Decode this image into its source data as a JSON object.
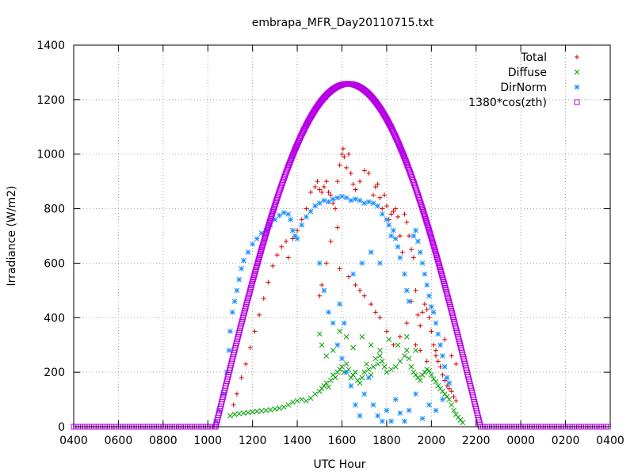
{
  "chart_data": {
    "type": "scatter",
    "title": "embrapa_MFR_Day20110715.txt",
    "xlabel": "UTC Hour",
    "ylabel": "Irradiance (W/m2)",
    "xlim": [
      4,
      28
    ],
    "ylim": [
      0,
      1400
    ],
    "x_ticks": [
      {
        "value": 4,
        "label": "0400"
      },
      {
        "value": 6,
        "label": "0600"
      },
      {
        "value": 8,
        "label": "0800"
      },
      {
        "value": 10,
        "label": "1000"
      },
      {
        "value": 12,
        "label": "1200"
      },
      {
        "value": 14,
        "label": "1400"
      },
      {
        "value": 16,
        "label": "1600"
      },
      {
        "value": 18,
        "label": "1800"
      },
      {
        "value": 20,
        "label": "2000"
      },
      {
        "value": 22,
        "label": "2200"
      },
      {
        "value": 24,
        "label": "0000"
      },
      {
        "value": 26,
        "label": "0200"
      },
      {
        "value": 28,
        "label": "0400"
      }
    ],
    "y_ticks": [
      0,
      200,
      400,
      600,
      800,
      1000,
      1200,
      1400
    ],
    "grid": true,
    "legend_position": "top-right",
    "series": [
      {
        "name": "Total",
        "marker": "plus",
        "color": "#d40000",
        "points": [
          [
            11.15,
            80
          ],
          [
            11.3,
            120
          ],
          [
            11.5,
            180
          ],
          [
            11.7,
            230
          ],
          [
            11.9,
            290
          ],
          [
            12.1,
            350
          ],
          [
            12.3,
            410
          ],
          [
            12.5,
            470
          ],
          [
            12.7,
            530
          ],
          [
            12.9,
            590
          ],
          [
            13.1,
            630
          ],
          [
            13.3,
            660
          ],
          [
            13.5,
            680
          ],
          [
            13.6,
            620
          ],
          [
            13.8,
            690
          ],
          [
            14.0,
            720
          ],
          [
            14.2,
            760
          ],
          [
            14.4,
            800
          ],
          [
            14.6,
            860
          ],
          [
            14.8,
            880
          ],
          [
            14.9,
            900
          ],
          [
            15.0,
            870
          ],
          [
            15.1,
            860
          ],
          [
            15.2,
            880
          ],
          [
            15.3,
            900
          ],
          [
            15.4,
            860
          ],
          [
            15.5,
            850
          ],
          [
            15.6,
            820
          ],
          [
            15.7,
            800
          ],
          [
            15.8,
            900
          ],
          [
            15.9,
            960
          ],
          [
            16.0,
            1000
          ],
          [
            16.05,
            1020
          ],
          [
            16.1,
            990
          ],
          [
            16.2,
            950
          ],
          [
            16.3,
            1000
          ],
          [
            16.4,
            930
          ],
          [
            16.5,
            890
          ],
          [
            16.6,
            870
          ],
          [
            16.8,
            900
          ],
          [
            17.0,
            940
          ],
          [
            17.2,
            930
          ],
          [
            17.4,
            850
          ],
          [
            17.5,
            880
          ],
          [
            17.6,
            890
          ],
          [
            17.7,
            840
          ],
          [
            17.8,
            800
          ],
          [
            17.9,
            850
          ],
          [
            18.0,
            810
          ],
          [
            18.1,
            760
          ],
          [
            18.2,
            780
          ],
          [
            18.3,
            790
          ],
          [
            18.4,
            800
          ],
          [
            18.5,
            770
          ],
          [
            18.6,
            700
          ],
          [
            18.7,
            640
          ],
          [
            18.8,
            780
          ],
          [
            18.9,
            750
          ],
          [
            19.0,
            700
          ],
          [
            19.1,
            650
          ],
          [
            19.2,
            620
          ],
          [
            19.3,
            500
          ],
          [
            19.4,
            410
          ],
          [
            19.5,
            370
          ],
          [
            19.6,
            420
          ],
          [
            19.7,
            450
          ],
          [
            19.8,
            430
          ],
          [
            19.9,
            400
          ],
          [
            20.0,
            350
          ],
          [
            20.1,
            300
          ],
          [
            20.2,
            260
          ],
          [
            20.3,
            240
          ],
          [
            20.4,
            220
          ],
          [
            20.5,
            190
          ],
          [
            20.6,
            170
          ],
          [
            20.7,
            150
          ],
          [
            20.8,
            140
          ],
          [
            20.9,
            130
          ],
          [
            21.0,
            110
          ],
          [
            21.1,
            95
          ],
          [
            15.0,
            480
          ],
          [
            15.1,
            520
          ],
          [
            15.3,
            600
          ],
          [
            15.5,
            680
          ],
          [
            15.8,
            730
          ],
          [
            15.9,
            580
          ],
          [
            16.3,
            550
          ],
          [
            16.6,
            520
          ],
          [
            16.8,
            500
          ],
          [
            17.0,
            480
          ],
          [
            17.3,
            450
          ],
          [
            17.5,
            420
          ],
          [
            17.7,
            400
          ],
          [
            18.0,
            350
          ],
          [
            18.3,
            300
          ],
          [
            18.6,
            330
          ],
          [
            18.9,
            380
          ],
          [
            19.1,
            460
          ],
          [
            19.3,
            300
          ],
          [
            19.5,
            280
          ],
          [
            19.8,
            240
          ],
          [
            20.2,
            280
          ],
          [
            20.6,
            320
          ],
          [
            20.9,
            260
          ],
          [
            21.1,
            230
          ]
        ]
      },
      {
        "name": "Diffuse",
        "marker": "cross",
        "color": "#00a000",
        "points": [
          [
            11.0,
            40
          ],
          [
            11.2,
            45
          ],
          [
            11.4,
            48
          ],
          [
            11.6,
            50
          ],
          [
            11.8,
            52
          ],
          [
            12.0,
            54
          ],
          [
            12.2,
            56
          ],
          [
            12.4,
            58
          ],
          [
            12.6,
            60
          ],
          [
            12.8,
            62
          ],
          [
            13.0,
            65
          ],
          [
            13.2,
            68
          ],
          [
            13.4,
            72
          ],
          [
            13.6,
            80
          ],
          [
            13.8,
            90
          ],
          [
            14.0,
            95
          ],
          [
            14.2,
            100
          ],
          [
            14.4,
            95
          ],
          [
            14.6,
            105
          ],
          [
            14.8,
            120
          ],
          [
            15.0,
            130
          ],
          [
            15.1,
            140
          ],
          [
            15.2,
            150
          ],
          [
            15.3,
            160
          ],
          [
            15.4,
            145
          ],
          [
            15.5,
            170
          ],
          [
            15.6,
            190
          ],
          [
            15.7,
            180
          ],
          [
            15.8,
            200
          ],
          [
            15.9,
            210
          ],
          [
            16.0,
            220
          ],
          [
            16.1,
            200
          ],
          [
            16.2,
            230
          ],
          [
            16.3,
            210
          ],
          [
            16.4,
            180
          ],
          [
            16.5,
            190
          ],
          [
            16.6,
            200
          ],
          [
            16.7,
            170
          ],
          [
            16.8,
            160
          ],
          [
            16.9,
            180
          ],
          [
            17.0,
            200
          ],
          [
            17.1,
            230
          ],
          [
            17.2,
            210
          ],
          [
            17.3,
            190
          ],
          [
            17.4,
            220
          ],
          [
            17.5,
            250
          ],
          [
            17.6,
            230
          ],
          [
            17.7,
            260
          ],
          [
            17.8,
            240
          ],
          [
            17.9,
            220
          ],
          [
            18.0,
            200
          ],
          [
            18.2,
            210
          ],
          [
            18.4,
            220
          ],
          [
            18.6,
            240
          ],
          [
            18.8,
            260
          ],
          [
            18.9,
            280
          ],
          [
            19.0,
            250
          ],
          [
            19.1,
            220
          ],
          [
            19.2,
            200
          ],
          [
            19.3,
            190
          ],
          [
            19.4,
            180
          ],
          [
            19.5,
            170
          ],
          [
            19.6,
            190
          ],
          [
            19.7,
            200
          ],
          [
            19.8,
            210
          ],
          [
            19.9,
            205
          ],
          [
            20.0,
            190
          ],
          [
            20.1,
            175
          ],
          [
            20.2,
            165
          ],
          [
            20.3,
            150
          ],
          [
            20.4,
            140
          ],
          [
            20.5,
            130
          ],
          [
            20.6,
            120
          ],
          [
            20.7,
            110
          ],
          [
            20.8,
            100
          ],
          [
            20.9,
            80
          ],
          [
            21.0,
            60
          ],
          [
            21.1,
            45
          ],
          [
            21.2,
            35
          ],
          [
            21.3,
            25
          ],
          [
            21.4,
            15
          ],
          [
            15.0,
            340
          ],
          [
            15.1,
            300
          ],
          [
            15.3,
            260
          ],
          [
            15.6,
            280
          ],
          [
            15.9,
            350
          ],
          [
            16.2,
            330
          ],
          [
            16.5,
            290
          ],
          [
            16.9,
            330
          ],
          [
            17.3,
            300
          ],
          [
            17.7,
            280
          ],
          [
            18.1,
            320
          ],
          [
            18.5,
            300
          ],
          [
            18.9,
            330
          ],
          [
            19.3,
            280
          ]
        ]
      },
      {
        "name": "DirNorm",
        "marker": "star",
        "color": "#1e90ff",
        "points": [
          [
            10.35,
            20
          ],
          [
            10.5,
            60
          ],
          [
            10.7,
            120
          ],
          [
            10.85,
            200
          ],
          [
            10.95,
            280
          ],
          [
            11.0,
            350
          ],
          [
            11.1,
            420
          ],
          [
            11.2,
            460
          ],
          [
            11.3,
            500
          ],
          [
            11.4,
            540
          ],
          [
            11.5,
            580
          ],
          [
            11.6,
            610
          ],
          [
            11.8,
            640
          ],
          [
            12.0,
            670
          ],
          [
            12.2,
            690
          ],
          [
            12.4,
            710
          ],
          [
            12.6,
            720
          ],
          [
            12.8,
            740
          ],
          [
            13.0,
            760
          ],
          [
            13.2,
            775
          ],
          [
            13.4,
            785
          ],
          [
            13.6,
            780
          ],
          [
            13.7,
            760
          ],
          [
            13.8,
            720
          ],
          [
            13.9,
            700
          ],
          [
            14.0,
            690
          ],
          [
            14.2,
            740
          ],
          [
            14.4,
            770
          ],
          [
            14.6,
            790
          ],
          [
            14.8,
            810
          ],
          [
            15.0,
            820
          ],
          [
            15.2,
            830
          ],
          [
            15.4,
            825
          ],
          [
            15.6,
            835
          ],
          [
            15.8,
            840
          ],
          [
            16.0,
            845
          ],
          [
            16.2,
            840
          ],
          [
            16.4,
            830
          ],
          [
            16.6,
            835
          ],
          [
            16.8,
            830
          ],
          [
            17.0,
            820
          ],
          [
            17.2,
            825
          ],
          [
            17.4,
            820
          ],
          [
            17.6,
            810
          ],
          [
            17.8,
            780
          ],
          [
            18.0,
            760
          ],
          [
            18.1,
            740
          ],
          [
            18.2,
            700
          ],
          [
            18.3,
            720
          ],
          [
            18.4,
            690
          ],
          [
            18.5,
            660
          ],
          [
            18.6,
            620
          ],
          [
            18.8,
            560
          ],
          [
            18.9,
            500
          ],
          [
            19.0,
            460
          ],
          [
            19.2,
            700
          ],
          [
            19.3,
            720
          ],
          [
            19.4,
            680
          ],
          [
            19.5,
            640
          ],
          [
            19.6,
            600
          ],
          [
            19.7,
            560
          ],
          [
            19.8,
            520
          ],
          [
            19.9,
            480
          ],
          [
            20.0,
            440
          ],
          [
            20.1,
            420
          ],
          [
            20.2,
            380
          ],
          [
            20.3,
            340
          ],
          [
            20.4,
            300
          ],
          [
            20.5,
            260
          ],
          [
            20.6,
            220
          ],
          [
            20.7,
            180
          ],
          [
            20.8,
            160
          ],
          [
            15.0,
            600
          ],
          [
            15.2,
            500
          ],
          [
            15.4,
            420
          ],
          [
            15.6,
            380
          ],
          [
            15.8,
            300
          ],
          [
            16.0,
            250
          ],
          [
            16.2,
            200
          ],
          [
            16.4,
            150
          ],
          [
            16.6,
            80
          ],
          [
            16.8,
            40
          ],
          [
            17.0,
            120
          ],
          [
            17.2,
            180
          ],
          [
            17.4,
            80
          ],
          [
            17.6,
            40
          ],
          [
            17.8,
            20
          ],
          [
            18.0,
            60
          ],
          [
            18.2,
            20
          ],
          [
            18.4,
            100
          ],
          [
            18.6,
            50
          ],
          [
            18.8,
            20
          ],
          [
            19.0,
            60
          ],
          [
            19.3,
            120
          ],
          [
            19.6,
            30
          ],
          [
            19.9,
            80
          ],
          [
            20.2,
            60
          ],
          [
            20.5,
            100
          ],
          [
            15.9,
            450
          ],
          [
            16.1,
            380
          ],
          [
            16.5,
            560
          ],
          [
            16.9,
            600
          ],
          [
            17.3,
            640
          ],
          [
            17.7,
            600
          ]
        ]
      },
      {
        "name": "1380*cos(zth)",
        "marker": "square",
        "color": "#b800e6",
        "curve": {
          "sunrise": 10.35,
          "sunset": 22.2,
          "peak_time": 16.1,
          "peak": 1258
        }
      }
    ]
  }
}
